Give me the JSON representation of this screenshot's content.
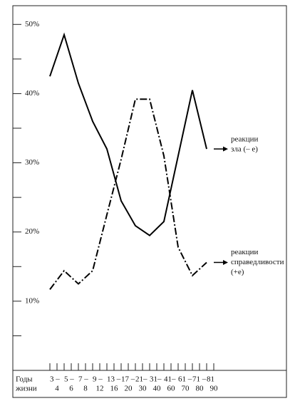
{
  "chart_data": {
    "type": "line",
    "categories_from": [
      "3 –",
      "5 –",
      "7 –",
      "9 –",
      "13 –",
      "17 –",
      "21–",
      "31–",
      "41–",
      "61 –",
      "71 –",
      "81"
    ],
    "categories_to": [
      "4",
      "6",
      "8",
      "12",
      "16",
      "20",
      "30",
      "40",
      "60",
      "70",
      "80",
      "90"
    ],
    "xlabel_lines": [
      "Годы",
      "жизни"
    ],
    "series": [
      {
        "name_lines": [
          "реакции",
          "зла (– е)"
        ],
        "color": "#000000",
        "dash": "solid",
        "values": [
          42.5,
          48.5,
          41.5,
          36,
          32,
          24.5,
          20.9,
          19.5,
          21.5,
          31,
          40.5,
          32
        ]
      },
      {
        "name_lines": [
          "реакции",
          "справедливости",
          "(+е)"
        ],
        "color": "#000000",
        "dash": "dashdot",
        "values": [
          11.7,
          14.4,
          12.5,
          14.4,
          22.5,
          30.5,
          39.2,
          39.2,
          31,
          17.8,
          13.7,
          15.6
        ]
      }
    ],
    "ylim": [
      0,
      52.5
    ],
    "yticks": [
      {
        "value": 10,
        "label": "10%"
      },
      {
        "value": 20,
        "label": "20%"
      },
      {
        "value": 30,
        "label": "30%"
      },
      {
        "value": 40,
        "label": "40%"
      },
      {
        "value": 50,
        "label": "50%"
      }
    ],
    "yminor_ticks": [
      5,
      15,
      25,
      35,
      45
    ]
  }
}
